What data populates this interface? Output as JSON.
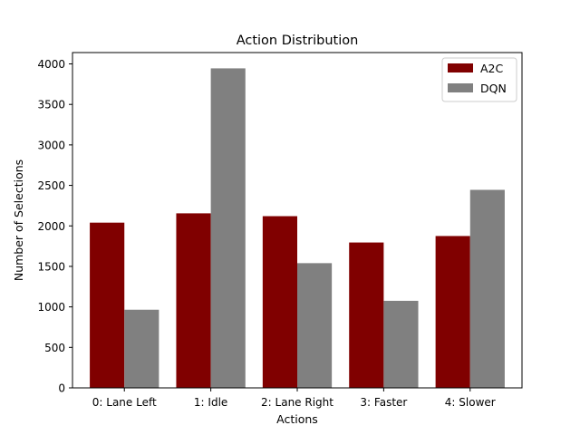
{
  "chart_data": {
    "type": "bar",
    "title": "Action Distribution",
    "xlabel": "Actions",
    "ylabel": "Number of Selections",
    "categories": [
      "0: Lane Left",
      "1: Idle",
      "2: Lane Right",
      "3: Faster",
      "4: Slower"
    ],
    "series": [
      {
        "name": "A2C",
        "color": "#800000",
        "values": [
          2040,
          2155,
          2120,
          1795,
          1875
        ]
      },
      {
        "name": "DQN",
        "color": "#808080",
        "values": [
          965,
          3945,
          1540,
          1075,
          2445
        ]
      }
    ],
    "ylim": [
      0,
      4140
    ],
    "yticks": [
      0,
      500,
      1000,
      1500,
      2000,
      2500,
      3000,
      3500,
      4000
    ],
    "grid": false,
    "legend_position": "top-right"
  }
}
